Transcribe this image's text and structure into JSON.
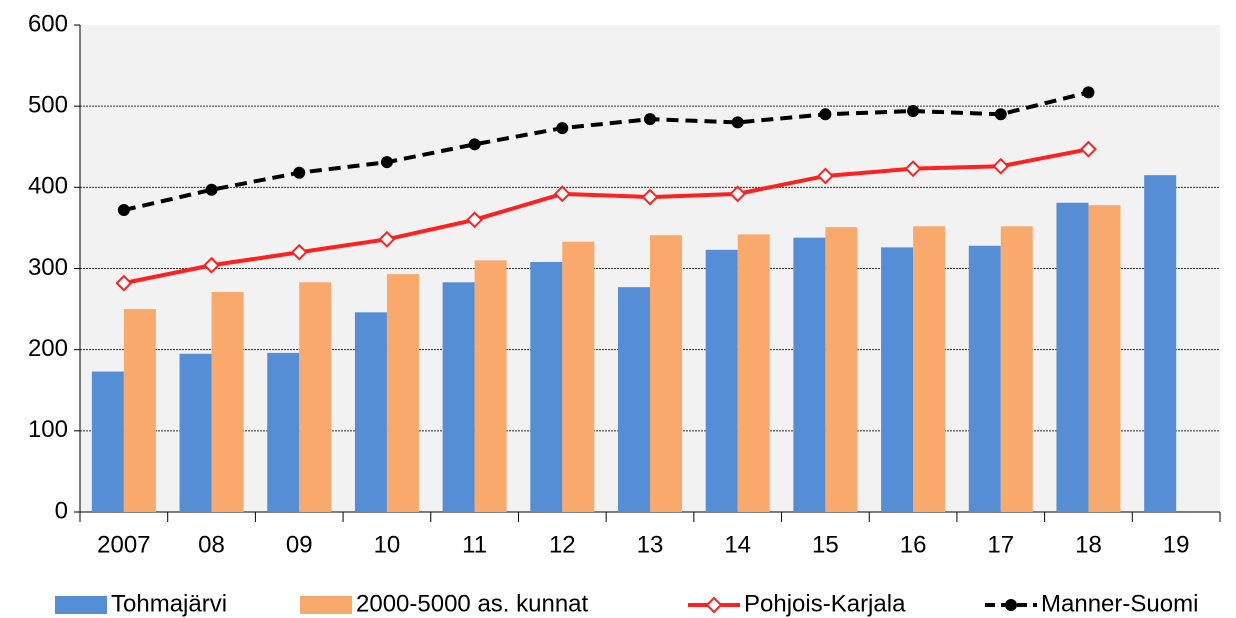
{
  "chart_data": {
    "type": "bar_line",
    "categories": [
      "2007",
      "08",
      "09",
      "10",
      "11",
      "12",
      "13",
      "14",
      "15",
      "16",
      "17",
      "18",
      "19"
    ],
    "series": [
      {
        "name": "Tohmajärvi",
        "type": "bar",
        "color": "#558ed5",
        "values": [
          173,
          195,
          196,
          246,
          283,
          308,
          277,
          323,
          338,
          326,
          328,
          381,
          415
        ]
      },
      {
        "name": "2000-5000 as. kunnat",
        "type": "bar",
        "color": "#f9a96b",
        "values": [
          250,
          271,
          283,
          293,
          310,
          333,
          341,
          342,
          351,
          352,
          352,
          378,
          null
        ]
      },
      {
        "name": "Pohjois-Karjala",
        "type": "line",
        "color": "#ff2020",
        "marker": "diamond-open",
        "values": [
          282,
          304,
          320,
          336,
          360,
          392,
          388,
          392,
          414,
          423,
          426,
          447,
          null
        ]
      },
      {
        "name": "Manner-Suomi",
        "type": "line",
        "color": "#000000",
        "dashed": true,
        "marker": "circle",
        "values": [
          372,
          397,
          418,
          431,
          453,
          473,
          484,
          480,
          490,
          494,
          490,
          517,
          null
        ]
      }
    ],
    "ylim": [
      0,
      600
    ],
    "yticks": [
      0,
      100,
      200,
      300,
      400,
      500,
      600
    ],
    "grid": true,
    "legend": "bottom"
  }
}
